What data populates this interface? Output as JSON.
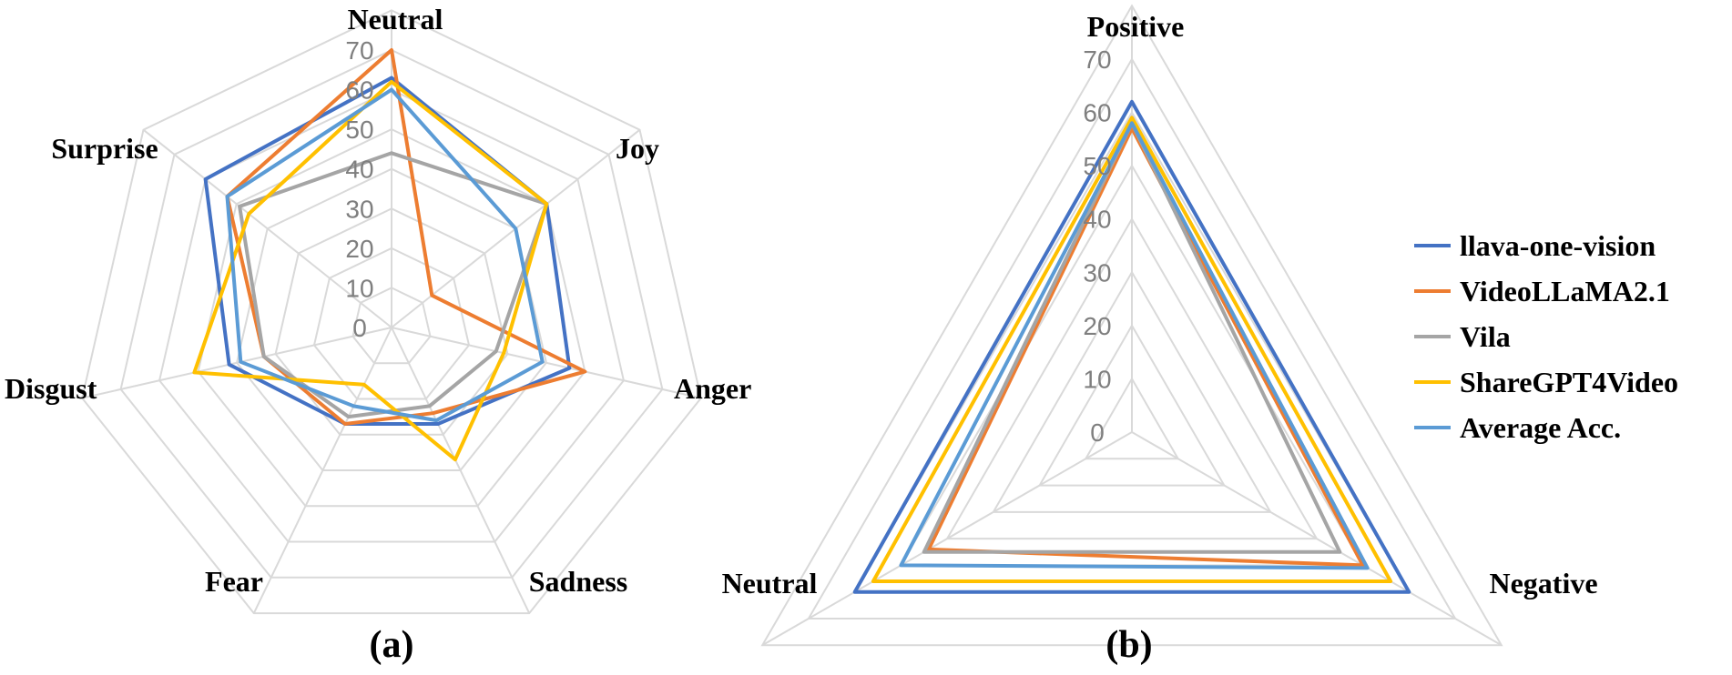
{
  "colors": {
    "llava-one-vision": "#4472c4",
    "VideoLLaMA2.1": "#ed7d31",
    "Vila": "#a5a5a5",
    "ShareGPT4Video": "#ffc000",
    "Average Acc.": "#5b9bd5",
    "grid": "#d9d9d9",
    "tick": "#7f7f7f"
  },
  "legend": {
    "placement": "right",
    "entries": [
      "llava-one-vision",
      "VideoLLaMA2.1",
      "Vila",
      "ShareGPT4Video",
      "Average Acc."
    ]
  },
  "chart_data": [
    {
      "type": "radar",
      "panel_label": "(a)",
      "axes": [
        "Neutral",
        "Joy",
        "Anger",
        "Sadness",
        "Fear",
        "Disgust",
        "Surprise"
      ],
      "ticks": [
        "0",
        "10",
        "20",
        "30",
        "40",
        "50",
        "60",
        "70"
      ],
      "range": [
        0,
        70
      ],
      "grid": true,
      "series": [
        {
          "name": "llava-one-vision",
          "values": [
            63,
            50,
            46,
            27,
            27,
            42,
            60
          ]
        },
        {
          "name": "VideoLLaMA2.1",
          "values": [
            70,
            13,
            50,
            24,
            27,
            33,
            53
          ]
        },
        {
          "name": "Vila",
          "values": [
            44,
            50,
            27,
            22,
            25,
            33,
            49
          ]
        },
        {
          "name": "ShareGPT4Video",
          "values": [
            62,
            50,
            29,
            37,
            16,
            51,
            46
          ]
        },
        {
          "name": "Average Acc.",
          "values": [
            60,
            40,
            39,
            26,
            22,
            39,
            53
          ]
        }
      ]
    },
    {
      "type": "radar",
      "panel_label": "(b)",
      "axes": [
        "Positive",
        "Negative",
        "Neutral"
      ],
      "ticks": [
        "0",
        "10",
        "20",
        "30",
        "40",
        "50",
        "60",
        "70"
      ],
      "range": [
        0,
        70
      ],
      "grid": true,
      "series": [
        {
          "name": "llava-one-vision",
          "values": [
            62,
            60,
            60
          ]
        },
        {
          "name": "VideoLLaMA2.1",
          "values": [
            57,
            50,
            44
          ]
        },
        {
          "name": "Vila",
          "values": [
            58,
            45,
            45
          ]
        },
        {
          "name": "ShareGPT4Video",
          "values": [
            59,
            56,
            56
          ]
        },
        {
          "name": "Average Acc.",
          "values": [
            58,
            51,
            50
          ]
        }
      ]
    }
  ]
}
